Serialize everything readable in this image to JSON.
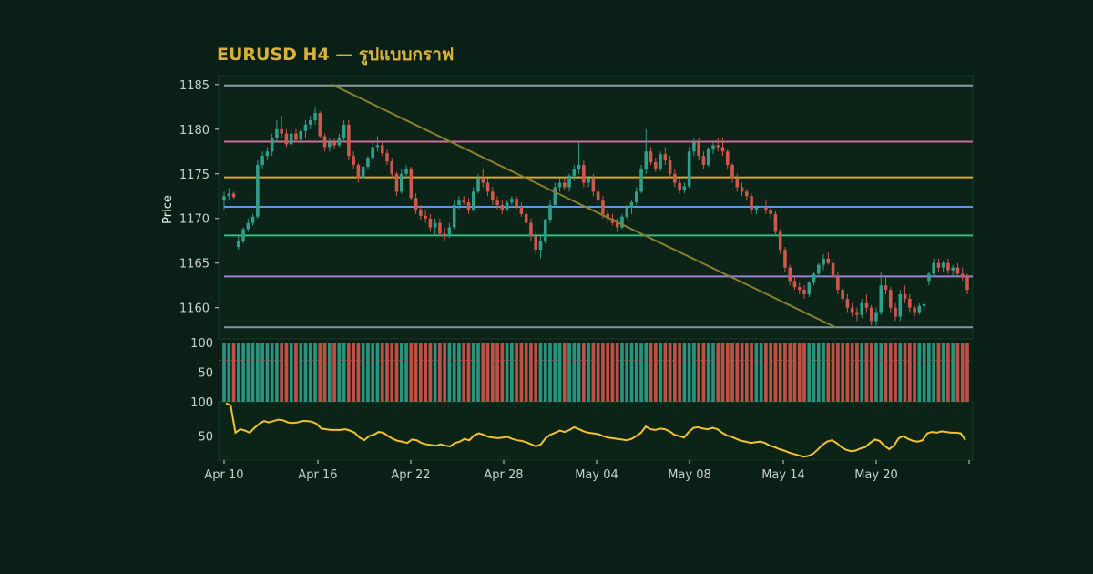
{
  "title": "EURUSD H4 — รูปแบบกราฟ",
  "colors": {
    "background": "#0a2016",
    "panel": "#0b2417",
    "up": "#2f9e8a",
    "down": "#d0574c",
    "title": "#d9b23a",
    "oscillator": "#f2c230",
    "trendline": "#8a7f2f"
  },
  "chart_data": {
    "type": "candlestick",
    "title": "EURUSD H4 — รูปแบบกราฟ",
    "ylabel": "Price",
    "xlabel": "",
    "ylim": [
      1156.5,
      1186
    ],
    "yticks": [
      1160,
      1165,
      1170,
      1175,
      1180,
      1185
    ],
    "x_tick_labels": [
      "Apr 10",
      "Apr 16",
      "Apr 22",
      "Apr 28",
      "May 04",
      "May 08",
      "May 14",
      "May 20"
    ],
    "grid": false,
    "horizontal_levels": [
      {
        "value": 1184.9,
        "color": "#8a9ba1"
      },
      {
        "value": 1178.6,
        "color": "#d46a9a"
      },
      {
        "value": 1174.6,
        "color": "#d9a62a"
      },
      {
        "value": 1171.3,
        "color": "#5b9bd5"
      },
      {
        "value": 1168.1,
        "color": "#2fbf7f"
      },
      {
        "value": 1163.5,
        "color": "#9c7fd6"
      },
      {
        "value": 1157.8,
        "color": "#7d96a8"
      }
    ],
    "trendline": {
      "from": [
        "Apr 17",
        1185.0
      ],
      "to": [
        "May 21",
        1157.8
      ]
    },
    "candles": [
      [
        1172,
        1173,
        1171,
        1172.5
      ],
      [
        1172.5,
        1173.4,
        1172,
        1172.8
      ],
      [
        1172.8,
        1173,
        1172.2,
        1172.4
      ],
      [
        1166.8,
        1168,
        1166.5,
        1167.5
      ],
      [
        1167.5,
        1169,
        1167.2,
        1168.8
      ],
      [
        1168.8,
        1170,
        1168.5,
        1169.5
      ],
      [
        1169.5,
        1170.5,
        1169.2,
        1170.2
      ],
      [
        1170.2,
        1176.5,
        1170,
        1176
      ],
      [
        1176,
        1177.5,
        1175.5,
        1177
      ],
      [
        1177,
        1178,
        1176.5,
        1177.5
      ],
      [
        1177.5,
        1179.5,
        1177,
        1179
      ],
      [
        1179,
        1181,
        1178.5,
        1180
      ],
      [
        1180,
        1181.5,
        1179,
        1179.5
      ],
      [
        1179.5,
        1180,
        1178,
        1178.3
      ],
      [
        1178.3,
        1180,
        1178,
        1179.5
      ],
      [
        1179.5,
        1180,
        1178.5,
        1178.8
      ],
      [
        1178.8,
        1180.2,
        1178.2,
        1179.8
      ],
      [
        1179.8,
        1181,
        1179,
        1180.5
      ],
      [
        1180.5,
        1181.5,
        1180,
        1181
      ],
      [
        1181,
        1182.5,
        1180.5,
        1181.8
      ],
      [
        1181.8,
        1182,
        1179,
        1179.2
      ],
      [
        1179.2,
        1179.5,
        1177.5,
        1178
      ],
      [
        1178,
        1179,
        1177.5,
        1178.5
      ],
      [
        1178.5,
        1179,
        1177.8,
        1178.2
      ],
      [
        1178.2,
        1179.5,
        1178,
        1179
      ],
      [
        1179,
        1181,
        1178.5,
        1180.5
      ],
      [
        1180.5,
        1181,
        1176.5,
        1177
      ],
      [
        1177,
        1177.5,
        1175.5,
        1176
      ],
      [
        1176,
        1176.2,
        1174,
        1174.5
      ],
      [
        1174.5,
        1176,
        1174.2,
        1175.8
      ],
      [
        1175.8,
        1177,
        1175.5,
        1176.8
      ],
      [
        1176.8,
        1178.5,
        1176.5,
        1178
      ],
      [
        1178,
        1179.2,
        1177.5,
        1178.2
      ],
      [
        1178.2,
        1178.5,
        1177,
        1177.3
      ],
      [
        1177.3,
        1177.8,
        1176,
        1176.4
      ],
      [
        1176.4,
        1176.8,
        1174.5,
        1175
      ],
      [
        1175,
        1175.2,
        1172.5,
        1173
      ],
      [
        1173,
        1175.5,
        1172.8,
        1175
      ],
      [
        1175,
        1176,
        1174.5,
        1175.5
      ],
      [
        1175.5,
        1175.8,
        1172,
        1172.3
      ],
      [
        1172.3,
        1172.8,
        1170.5,
        1171
      ],
      [
        1171,
        1171.5,
        1169.8,
        1170.3
      ],
      [
        1170.3,
        1171,
        1169.5,
        1170
      ],
      [
        1170,
        1170.5,
        1168.5,
        1169
      ],
      [
        1169,
        1170,
        1168.2,
        1169.5
      ],
      [
        1169.5,
        1170,
        1168,
        1168.3
      ],
      [
        1168.3,
        1169,
        1167.5,
        1168
      ],
      [
        1168,
        1169.5,
        1167.8,
        1169
      ],
      [
        1169,
        1172,
        1168.8,
        1171.5
      ],
      [
        1171.5,
        1172.5,
        1171,
        1172
      ],
      [
        1172,
        1172.5,
        1171.5,
        1171.8
      ],
      [
        1171.8,
        1172.3,
        1170.5,
        1171
      ],
      [
        1171,
        1173.5,
        1170.8,
        1173
      ],
      [
        1173,
        1175,
        1172.8,
        1174.5
      ],
      [
        1174.5,
        1175.5,
        1173.5,
        1174
      ],
      [
        1174,
        1174.5,
        1172.5,
        1173
      ],
      [
        1173,
        1173.5,
        1171.5,
        1172
      ],
      [
        1172,
        1172.5,
        1171,
        1171.5
      ],
      [
        1171.5,
        1172,
        1170.5,
        1171
      ],
      [
        1171,
        1172,
        1170.8,
        1171.8
      ],
      [
        1171.8,
        1172.5,
        1171.5,
        1172.2
      ],
      [
        1172.2,
        1172.5,
        1171,
        1171.3
      ],
      [
        1171.3,
        1171.8,
        1170.2,
        1170.5
      ],
      [
        1170.5,
        1171,
        1169.2,
        1169.5
      ],
      [
        1169.5,
        1170,
        1167.5,
        1168
      ],
      [
        1168,
        1168.5,
        1166,
        1166.5
      ],
      [
        1166.5,
        1168,
        1165.5,
        1167.5
      ],
      [
        1167.5,
        1170,
        1167.2,
        1169.8
      ],
      [
        1169.8,
        1172,
        1169.5,
        1171.5
      ],
      [
        1171.5,
        1174,
        1171.2,
        1173.5
      ],
      [
        1173.5,
        1174.5,
        1173,
        1174
      ],
      [
        1174,
        1174.5,
        1173.2,
        1173.5
      ],
      [
        1173.5,
        1175,
        1173,
        1174.8
      ],
      [
        1174.8,
        1176,
        1174.2,
        1175.5
      ],
      [
        1175.5,
        1178.5,
        1175,
        1176
      ],
      [
        1176,
        1176.5,
        1173.5,
        1174
      ],
      [
        1174,
        1174.8,
        1173.5,
        1174.5
      ],
      [
        1174.5,
        1175,
        1172.5,
        1173
      ],
      [
        1173,
        1173.5,
        1171.5,
        1172
      ],
      [
        1172,
        1172.5,
        1170,
        1170.5
      ],
      [
        1170.5,
        1171,
        1169.5,
        1170
      ],
      [
        1170,
        1170.5,
        1169.2,
        1169.5
      ],
      [
        1169.5,
        1170,
        1168.5,
        1169
      ],
      [
        1169,
        1170.5,
        1168.8,
        1170.2
      ],
      [
        1170.2,
        1171.5,
        1170,
        1171.2
      ],
      [
        1171.2,
        1172,
        1170.5,
        1171.8
      ],
      [
        1171.8,
        1173.5,
        1171.5,
        1173
      ],
      [
        1173,
        1176,
        1172.8,
        1175.5
      ],
      [
        1175.5,
        1180,
        1175,
        1177.5
      ],
      [
        1177.5,
        1178,
        1176,
        1176.3
      ],
      [
        1176.3,
        1176.8,
        1175.2,
        1175.6
      ],
      [
        1175.6,
        1177.5,
        1175.3,
        1177.2
      ],
      [
        1177.2,
        1178,
        1176,
        1176.5
      ],
      [
        1176.5,
        1177,
        1174.5,
        1175
      ],
      [
        1175,
        1175.5,
        1173.5,
        1174
      ],
      [
        1174,
        1174.5,
        1172.8,
        1173.2
      ],
      [
        1173.2,
        1174,
        1172.8,
        1173.6
      ],
      [
        1173.6,
        1178,
        1173.4,
        1177.5
      ],
      [
        1177.5,
        1179,
        1177,
        1178.5
      ],
      [
        1178.5,
        1179,
        1176.5,
        1177
      ],
      [
        1177,
        1177.5,
        1175.5,
        1176
      ],
      [
        1176,
        1178,
        1175.8,
        1177.8
      ],
      [
        1177.8,
        1178.5,
        1177.2,
        1178.2
      ],
      [
        1178.2,
        1179,
        1177.5,
        1178
      ],
      [
        1178,
        1179,
        1177,
        1177.5
      ],
      [
        1177.5,
        1177.8,
        1175.5,
        1176
      ],
      [
        1176,
        1176.2,
        1174,
        1174.5
      ],
      [
        1174.5,
        1175,
        1173,
        1173.5
      ],
      [
        1173.5,
        1174,
        1172.5,
        1173
      ],
      [
        1173,
        1173.3,
        1172,
        1172.5
      ],
      [
        1172.5,
        1172.8,
        1170.5,
        1171
      ],
      [
        1171,
        1171.5,
        1170.5,
        1171.2
      ],
      [
        1171.2,
        1171.6,
        1170.8,
        1171.3
      ],
      [
        1171.3,
        1172,
        1170.5,
        1171
      ],
      [
        1171,
        1171.5,
        1170,
        1170.5
      ],
      [
        1170.5,
        1170.8,
        1168,
        1168.5
      ],
      [
        1168.5,
        1168.8,
        1166,
        1166.5
      ],
      [
        1166.5,
        1166.8,
        1164,
        1164.5
      ],
      [
        1164.5,
        1164.8,
        1162.5,
        1163
      ],
      [
        1163,
        1163.5,
        1162,
        1162.3
      ],
      [
        1162.3,
        1162.8,
        1161.5,
        1162
      ],
      [
        1162,
        1162.5,
        1161,
        1161.5
      ],
      [
        1161.5,
        1163,
        1161.2,
        1162.8
      ],
      [
        1162.8,
        1164,
        1162.5,
        1163.8
      ],
      [
        1163.8,
        1165,
        1163.5,
        1164.8
      ],
      [
        1164.8,
        1166,
        1164.2,
        1165.5
      ],
      [
        1165.5,
        1166.2,
        1164.8,
        1165
      ],
      [
        1165,
        1165.5,
        1163.2,
        1163.5
      ],
      [
        1163.5,
        1164,
        1161.5,
        1162
      ],
      [
        1162,
        1162.3,
        1160.5,
        1161
      ],
      [
        1161,
        1161.5,
        1159.5,
        1160
      ],
      [
        1160,
        1160.5,
        1159,
        1159.5
      ],
      [
        1159.5,
        1160,
        1158.5,
        1159.2
      ],
      [
        1159.2,
        1161,
        1158.8,
        1160.5
      ],
      [
        1160.5,
        1161.5,
        1159.5,
        1160
      ],
      [
        1160,
        1160.3,
        1158,
        1158.5
      ],
      [
        1158.5,
        1160,
        1158,
        1159.5
      ],
      [
        1159.5,
        1164,
        1159.2,
        1162.5
      ],
      [
        1162.5,
        1163.5,
        1161.5,
        1162
      ],
      [
        1162,
        1162.3,
        1159.5,
        1160
      ],
      [
        1160,
        1160.5,
        1158.5,
        1159
      ],
      [
        1159,
        1162,
        1158.5,
        1161.5
      ],
      [
        1161.5,
        1162.5,
        1160.5,
        1161
      ],
      [
        1161,
        1161.5,
        1159.5,
        1160
      ],
      [
        1160,
        1160.3,
        1159,
        1159.5
      ],
      [
        1159.5,
        1160.5,
        1159.2,
        1160.2
      ],
      [
        1160.2,
        1160.8,
        1159.6,
        1160.4
      ],
      [
        1163,
        1164,
        1162.5,
        1163.8
      ],
      [
        1163.8,
        1165.5,
        1163.5,
        1165
      ],
      [
        1165,
        1165.5,
        1164,
        1164.5
      ],
      [
        1164.5,
        1165.3,
        1164,
        1165
      ],
      [
        1165,
        1165.5,
        1163.8,
        1164.2
      ],
      [
        1164.2,
        1164.8,
        1163.5,
        1164.5
      ],
      [
        1164.5,
        1165,
        1163.5,
        1163.8
      ],
      [
        1163.8,
        1164.5,
        1163,
        1163.5
      ],
      [
        1163.5,
        1163.8,
        1161.5,
        1162
      ]
    ],
    "volume_panel": {
      "ylim": [
        0,
        100
      ],
      "yticks": [
        0,
        50,
        100
      ],
      "reference_lines": [
        70,
        30
      ]
    },
    "oscillator": {
      "ylim": [
        15,
        100
      ],
      "yticks": [
        50,
        100
      ],
      "values": [
        98,
        95,
        55,
        60,
        58,
        55,
        62,
        68,
        72,
        70,
        72,
        74,
        73,
        70,
        69,
        70,
        72,
        72,
        71,
        68,
        61,
        60,
        59,
        59,
        59,
        60,
        58,
        55,
        48,
        44,
        50,
        52,
        56,
        55,
        50,
        46,
        43,
        42,
        40,
        45,
        44,
        40,
        38,
        37,
        36,
        38,
        36,
        35,
        40,
        42,
        46,
        44,
        51,
        54,
        52,
        49,
        48,
        47,
        48,
        49,
        46,
        44,
        43,
        41,
        38,
        35,
        38,
        47,
        52,
        55,
        58,
        56,
        59,
        63,
        60,
        57,
        55,
        54,
        53,
        50,
        48,
        47,
        46,
        45,
        44,
        46,
        50,
        55,
        64,
        60,
        59,
        61,
        60,
        57,
        52,
        50,
        48,
        56,
        62,
        63,
        61,
        60,
        62,
        60,
        55,
        51,
        49,
        46,
        43,
        42,
        40,
        41,
        42,
        40,
        36,
        34,
        31,
        29,
        26,
        24,
        22,
        20,
        21,
        24,
        30,
        37,
        42,
        44,
        40,
        34,
        30,
        28,
        29,
        32,
        34,
        40,
        45,
        43,
        36,
        31,
        36,
        47,
        50,
        46,
        43,
        42,
        44,
        54,
        56,
        55,
        57,
        56,
        55,
        55,
        54,
        44
      ]
    }
  }
}
